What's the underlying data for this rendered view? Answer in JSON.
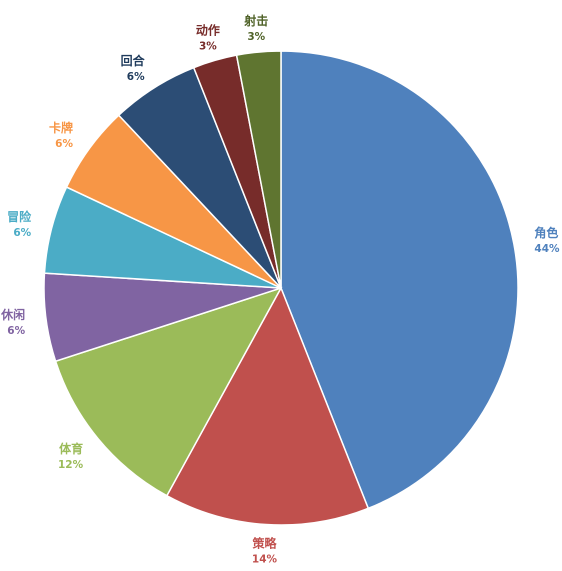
{
  "chart_data": {
    "type": "pie",
    "title": "",
    "start_angle_deg": 0,
    "direction": "clockwise",
    "slices": [
      {
        "label": "角色",
        "value": 44,
        "display": "44%",
        "color": "#4F81BD"
      },
      {
        "label": "策略",
        "value": 14,
        "display": "14%",
        "color": "#C0504D"
      },
      {
        "label": "体育",
        "value": 12,
        "display": "12%",
        "color": "#9BBB59"
      },
      {
        "label": "休闲",
        "value": 6,
        "display": "6%",
        "color": "#8064A2"
      },
      {
        "label": "冒险",
        "value": 6,
        "display": "6%",
        "color": "#4BACC6"
      },
      {
        "label": "卡牌",
        "value": 6,
        "display": "6%",
        "color": "#F79646"
      },
      {
        "label": "回合",
        "value": 6,
        "display": "6%",
        "color": "#2C4D75"
      },
      {
        "label": "动作",
        "value": 3,
        "display": "3%",
        "color": "#772C2A"
      },
      {
        "label": "射击",
        "value": 3,
        "display": "3%",
        "color": "#5F7530"
      }
    ],
    "label_colors": [
      "#4F81BD",
      "#C0504D",
      "#9BBB59",
      "#8064A2",
      "#4BACC6",
      "#F79646",
      "#1F3B5C",
      "#772C2A",
      "#4F6228"
    ],
    "legend": "none"
  }
}
